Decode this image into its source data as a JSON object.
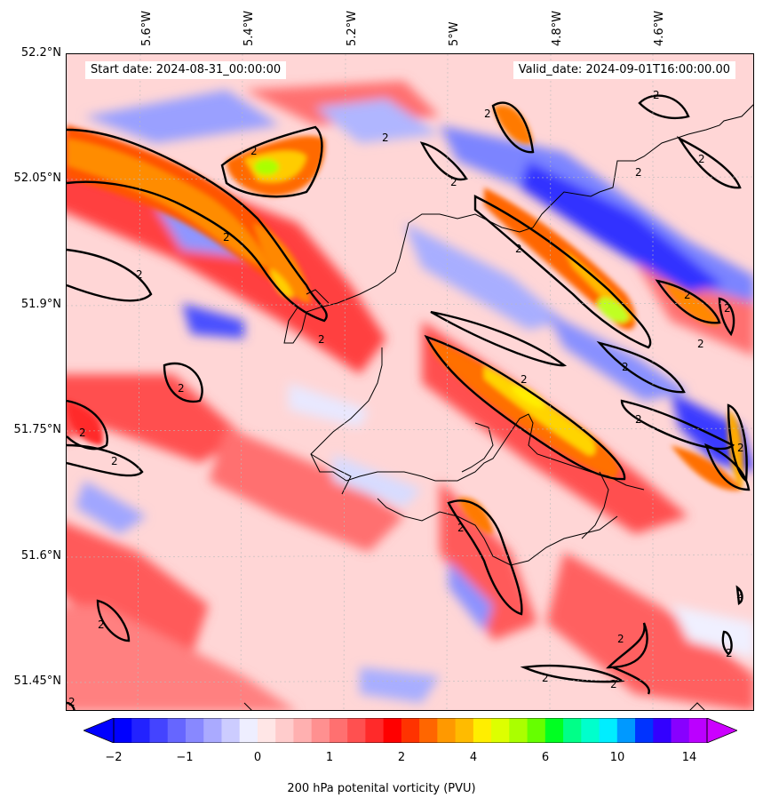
{
  "map": {
    "start_label": "Start date: 2024-08-31_00:00:00",
    "valid_label": "Valid_date: 2024-09-01T16:00:00.00",
    "lon_ticks": [
      "5.6°W",
      "5.4°W",
      "5.2°W",
      "5°W",
      "4.8°W",
      "4.6°W"
    ],
    "lat_ticks": [
      "52.2°N",
      "52.05°N",
      "51.9°N",
      "51.75°N",
      "51.6°N",
      "51.45°N"
    ],
    "contour_label": "2",
    "colors": {
      "strong_negative": "#0000ff",
      "weak_negative": "#aab0ff",
      "near_zero": "#ffe8e8",
      "positive": "#ff3030",
      "strong_positive": "#ff8000",
      "peak": "#aaff00"
    }
  },
  "colorbar": {
    "title": "200 hPa potenital vorticity (PVU)",
    "tick_labels": [
      "−2",
      "−1",
      "0",
      "1",
      "2",
      "4",
      "6",
      "10",
      "14"
    ],
    "colors": [
      "#0000ff",
      "#2222ff",
      "#4444ff",
      "#6666ff",
      "#8888ff",
      "#aaaaff",
      "#ccccff",
      "#eeeeff",
      "#ffe6e6",
      "#ffcccc",
      "#ffb0b0",
      "#ff9090",
      "#ff7070",
      "#ff5050",
      "#ff2a2a",
      "#ff0000",
      "#ff3300",
      "#ff6600",
      "#ff9900",
      "#ffbb00",
      "#ffee00",
      "#ddff00",
      "#aaff00",
      "#66ff00",
      "#00ff22",
      "#00ff88",
      "#00ffcc",
      "#00eeff",
      "#0099ff",
      "#0033ff",
      "#3300ff",
      "#8800ff",
      "#bb00ff"
    ]
  }
}
